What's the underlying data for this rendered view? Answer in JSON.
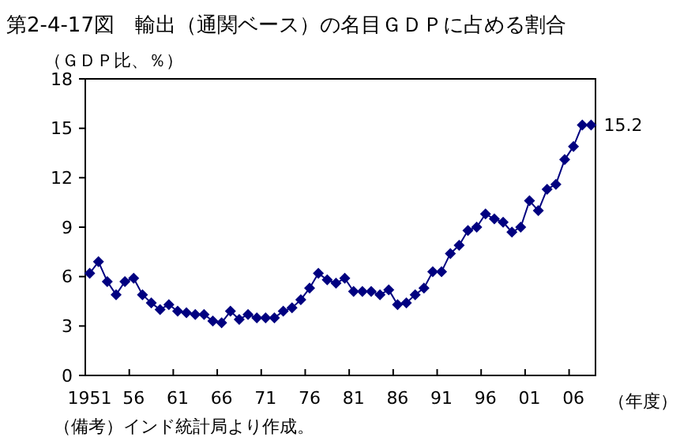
{
  "chart_data": {
    "type": "line",
    "title": "第2-4-17図　輸出（通関ベース）の名目ＧＤＰに占める割合",
    "ylabel": "（ＧＤＰ比、％）",
    "xlabel": "（年度）",
    "annotations": [
      "（備考）インド統計局より作成。"
    ],
    "categories": [
      "1951",
      null,
      null,
      null,
      null,
      "56",
      null,
      null,
      null,
      null,
      "61",
      null,
      null,
      null,
      null,
      "66",
      null,
      null,
      null,
      null,
      "71",
      null,
      null,
      null,
      null,
      "76",
      null,
      null,
      null,
      null,
      "81",
      null,
      null,
      null,
      null,
      "86",
      null,
      null,
      null,
      null,
      "91",
      null,
      null,
      null,
      null,
      "96",
      null,
      null,
      null,
      null,
      "01",
      null,
      null,
      null,
      null,
      "06",
      null,
      null
    ],
    "series": [
      {
        "color": "#000080",
        "values": [
          6.2,
          6.9,
          5.7,
          4.9,
          5.7,
          5.9,
          4.9,
          4.4,
          4.0,
          4.3,
          3.9,
          3.8,
          3.7,
          3.7,
          3.3,
          3.2,
          3.9,
          3.4,
          3.7,
          3.5,
          3.5,
          3.5,
          3.9,
          4.1,
          4.6,
          5.3,
          6.2,
          5.8,
          5.6,
          5.9,
          5.1,
          5.1,
          5.1,
          4.9,
          5.2,
          4.3,
          4.4,
          4.9,
          5.3,
          6.3,
          6.3,
          7.4,
          7.9,
          8.8,
          9.0,
          9.8,
          9.5,
          9.3,
          8.7,
          9.0,
          10.6,
          10.0,
          11.3,
          11.6,
          13.1,
          13.9,
          15.2,
          15.2
        ],
        "value_labels": [
          null,
          null,
          null,
          null,
          null,
          null,
          null,
          null,
          null,
          null,
          null,
          null,
          null,
          null,
          null,
          null,
          null,
          null,
          null,
          null,
          null,
          null,
          null,
          null,
          null,
          null,
          null,
          null,
          null,
          null,
          null,
          null,
          null,
          null,
          null,
          null,
          null,
          null,
          null,
          null,
          null,
          null,
          null,
          null,
          null,
          null,
          null,
          null,
          null,
          null,
          null,
          null,
          null,
          null,
          null,
          null,
          null,
          "15.2"
        ]
      }
    ],
    "ylim": [
      0,
      18
    ],
    "yticks": [
      0,
      3,
      6,
      9,
      12,
      15,
      18
    ],
    "marker": "diamond",
    "line_style": "solid"
  }
}
